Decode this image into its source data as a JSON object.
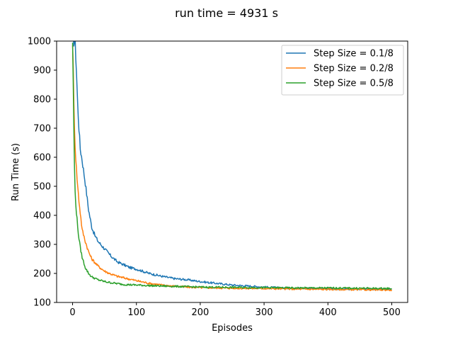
{
  "chart_data": {
    "type": "line",
    "title": "run time = 4931 s",
    "xlabel": "Episodes",
    "ylabel": "Run Time (s)",
    "xlim": [
      -25,
      525
    ],
    "ylim": [
      100,
      1000
    ],
    "xticks": [
      0,
      100,
      200,
      300,
      400,
      500
    ],
    "yticks": [
      100,
      200,
      300,
      400,
      500,
      600,
      700,
      800,
      900,
      1000
    ],
    "grid": false,
    "legend_position": "top-right",
    "series": [
      {
        "name": "Step Size = 0.1/8",
        "color": "#1f77b4",
        "x": [
          0,
          2,
          4,
          6,
          8,
          10,
          12,
          15,
          20,
          25,
          30,
          35,
          40,
          50,
          60,
          70,
          80,
          90,
          100,
          120,
          140,
          160,
          180,
          200,
          220,
          250,
          280,
          300,
          330,
          360,
          400,
          430,
          460,
          500
        ],
        "y": [
          1000,
          1000,
          1000,
          900,
          780,
          700,
          630,
          590,
          510,
          420,
          360,
          330,
          310,
          285,
          260,
          240,
          230,
          220,
          215,
          200,
          190,
          182,
          178,
          172,
          167,
          160,
          156,
          153,
          150,
          149,
          147,
          146,
          146,
          145
        ]
      },
      {
        "name": "Step Size = 0.2/8",
        "color": "#ff7f0e",
        "x": [
          0,
          1,
          2,
          4,
          6,
          8,
          10,
          12,
          15,
          20,
          25,
          30,
          40,
          50,
          60,
          70,
          80,
          90,
          100,
          120,
          140,
          160,
          180,
          200,
          250,
          300,
          350,
          400,
          450,
          500
        ],
        "y": [
          1000,
          900,
          780,
          640,
          560,
          500,
          450,
          410,
          350,
          310,
          275,
          250,
          225,
          208,
          198,
          190,
          185,
          180,
          175,
          166,
          160,
          156,
          153,
          151,
          149,
          148,
          146,
          145,
          144,
          143
        ]
      },
      {
        "name": "Step Size = 0.5/8",
        "color": "#2ca02c",
        "x": [
          0,
          1,
          2,
          3,
          4,
          6,
          8,
          10,
          12,
          15,
          20,
          25,
          30,
          40,
          50,
          60,
          80,
          100,
          120,
          150,
          200,
          250,
          300,
          350,
          400,
          450,
          500
        ],
        "y": [
          1000,
          850,
          700,
          560,
          480,
          410,
          360,
          320,
          290,
          255,
          220,
          200,
          188,
          178,
          172,
          168,
          162,
          160,
          158,
          156,
          153,
          152,
          151,
          150,
          150,
          149,
          148
        ]
      }
    ]
  }
}
